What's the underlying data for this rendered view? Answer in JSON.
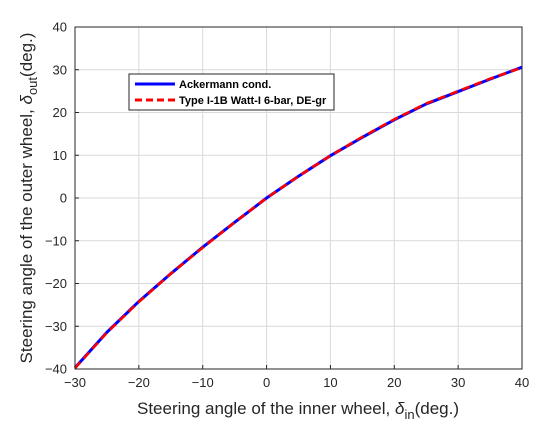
{
  "chart_data": {
    "type": "line",
    "xlabel": {
      "prefix": "Steering angle of the inner wheel, ",
      "symbol": "δ",
      "subscript": "in",
      "suffix": "(deg.)"
    },
    "ylabel": {
      "prefix": "Steering angle of the outer wheel, ",
      "symbol": "δ",
      "subscript": "out",
      "suffix": "(deg.)"
    },
    "xlim": [
      -30,
      40
    ],
    "ylim": [
      -40,
      40
    ],
    "xticks": [
      -30,
      -20,
      -10,
      0,
      10,
      20,
      30,
      40
    ],
    "yticks": [
      -40,
      -30,
      -20,
      -10,
      0,
      10,
      20,
      30,
      40
    ],
    "grid": true,
    "legend_position": "upper-left",
    "series": [
      {
        "name": "Ackermann cond.",
        "color": "#0000ff",
        "style": "solid",
        "x": [
          -30,
          -25,
          -20,
          -15,
          -10,
          -5,
          0,
          5,
          10,
          15,
          20,
          25,
          30,
          35,
          40
        ],
        "y": [
          -39.7,
          -31.4,
          -24.2,
          -17.7,
          -11.5,
          -5.7,
          0,
          5.1,
          9.9,
          14.2,
          18.3,
          22.0,
          24.9,
          27.8,
          30.6
        ]
      },
      {
        "name": "Type I-1B Watt-I 6-bar, DE-gr",
        "color": "#ff0000",
        "style": "dashed",
        "x": [
          -30,
          -25,
          -20,
          -15,
          -10,
          -5,
          0,
          5,
          10,
          15,
          20,
          25,
          30,
          35,
          40
        ],
        "y": [
          -39.8,
          -31.5,
          -24.3,
          -17.7,
          -11.6,
          -5.7,
          0,
          5.1,
          9.9,
          14.3,
          18.4,
          22.1,
          25.0,
          27.9,
          30.5
        ]
      }
    ]
  }
}
